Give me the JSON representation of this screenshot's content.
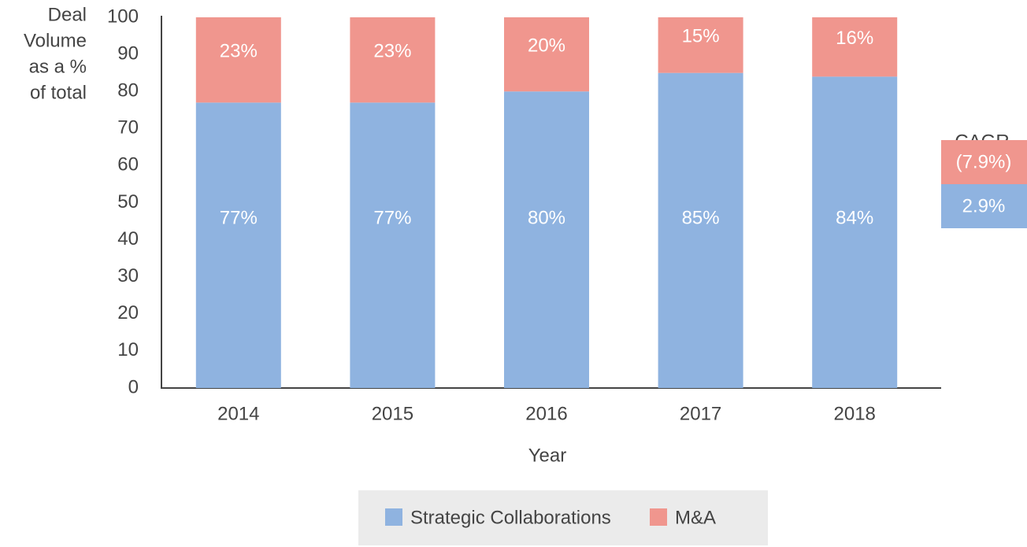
{
  "chart_data": {
    "type": "stacked_bar",
    "ylabel": [
      "Deal",
      "Volume",
      "as a %",
      "of total"
    ],
    "xlabel": "Year",
    "categories": [
      "2014",
      "2015",
      "2016",
      "2017",
      "2018"
    ],
    "series": [
      {
        "name": "Strategic Collaborations",
        "color": "#8fb3e0",
        "values": [
          77,
          77,
          80,
          85,
          84
        ],
        "value_labels": [
          "77%",
          "77%",
          "80%",
          "85%",
          "84%"
        ]
      },
      {
        "name": "M&A",
        "color": "#f0968e",
        "values": [
          23,
          23,
          20,
          15,
          16
        ],
        "value_labels": [
          "23%",
          "23%",
          "20%",
          "15%",
          "16%"
        ]
      }
    ],
    "ylim": [
      0,
      100
    ],
    "yticks": [
      0,
      10,
      20,
      30,
      40,
      50,
      60,
      70,
      80,
      90,
      100
    ],
    "cagr": {
      "title": "CAGR",
      "labels": [
        "2.9%",
        "(7.9%)"
      ]
    },
    "legend": "bottom"
  }
}
